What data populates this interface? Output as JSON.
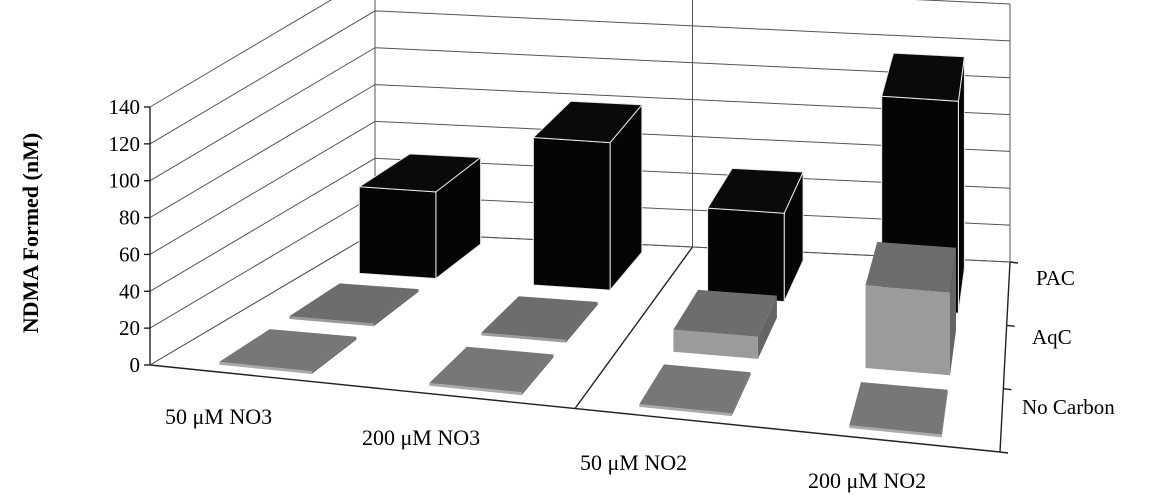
{
  "chart_data": {
    "type": "bar",
    "subtype": "3d-column",
    "title": "",
    "ylabel": "NDMA Formed (nM)",
    "xlabel": "",
    "ylim": [
      0,
      140
    ],
    "y_ticks": [
      0,
      20,
      40,
      60,
      80,
      100,
      120,
      140
    ],
    "categories": [
      "50 μM NO3",
      "200 μM NO3",
      "50 μM NO2",
      "200 μM NO2"
    ],
    "series": [
      {
        "name": "No Carbon",
        "color": "#999999",
        "values": [
          0,
          0,
          0,
          0
        ]
      },
      {
        "name": "AqC",
        "color": "#8c8c8c",
        "values": [
          0,
          0,
          12,
          45
        ]
      },
      {
        "name": "PAC",
        "color": "#000000",
        "values": [
          47,
          80,
          48,
          115
        ]
      }
    ],
    "grid": true,
    "legend": "depth-axis-right"
  }
}
